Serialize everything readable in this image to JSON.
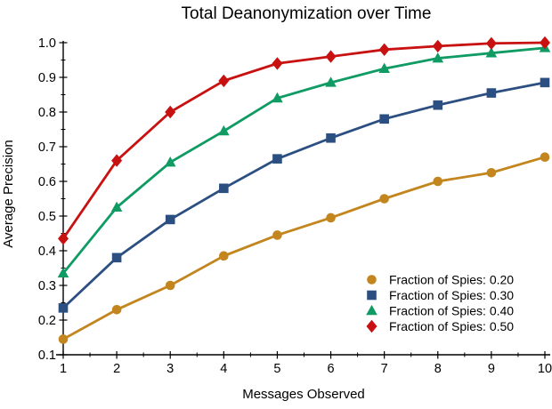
{
  "chart_data": {
    "type": "line",
    "title": "Total Deanonymization over Time",
    "xlabel": "Messages Observed",
    "ylabel": "Average Precision",
    "x": [
      1,
      2,
      3,
      4,
      5,
      6,
      7,
      8,
      9,
      10
    ],
    "x_ticks": [
      1,
      2,
      3,
      4,
      5,
      6,
      7,
      8,
      9,
      10
    ],
    "y_ticks": [
      0.1,
      0.2,
      0.3,
      0.4,
      0.5,
      0.6,
      0.7,
      0.8,
      0.9,
      1.0
    ],
    "xlim": [
      0.85,
      10.1
    ],
    "ylim": [
      0.1,
      1.0
    ],
    "grid": false,
    "legend_position": "lower right",
    "series": [
      {
        "name": "Fraction of Spies: 0.20",
        "marker": "circle",
        "color": "#C3851D",
        "values": [
          0.145,
          0.23,
          0.3,
          0.385,
          0.445,
          0.495,
          0.55,
          0.6,
          0.625,
          0.67
        ]
      },
      {
        "name": "Fraction of Spies: 0.30",
        "marker": "square",
        "color": "#2C4F81",
        "values": [
          0.235,
          0.38,
          0.49,
          0.58,
          0.665,
          0.725,
          0.78,
          0.82,
          0.855,
          0.885
        ]
      },
      {
        "name": "Fraction of Spies: 0.40",
        "marker": "triangle",
        "color": "#0F9B63",
        "values": [
          0.335,
          0.525,
          0.655,
          0.745,
          0.84,
          0.885,
          0.925,
          0.955,
          0.97,
          0.985
        ]
      },
      {
        "name": "Fraction of Spies: 0.50",
        "marker": "diamond",
        "color": "#C81111",
        "values": [
          0.435,
          0.66,
          0.8,
          0.89,
          0.94,
          0.96,
          0.98,
          0.99,
          0.998,
          1.0
        ]
      }
    ]
  }
}
